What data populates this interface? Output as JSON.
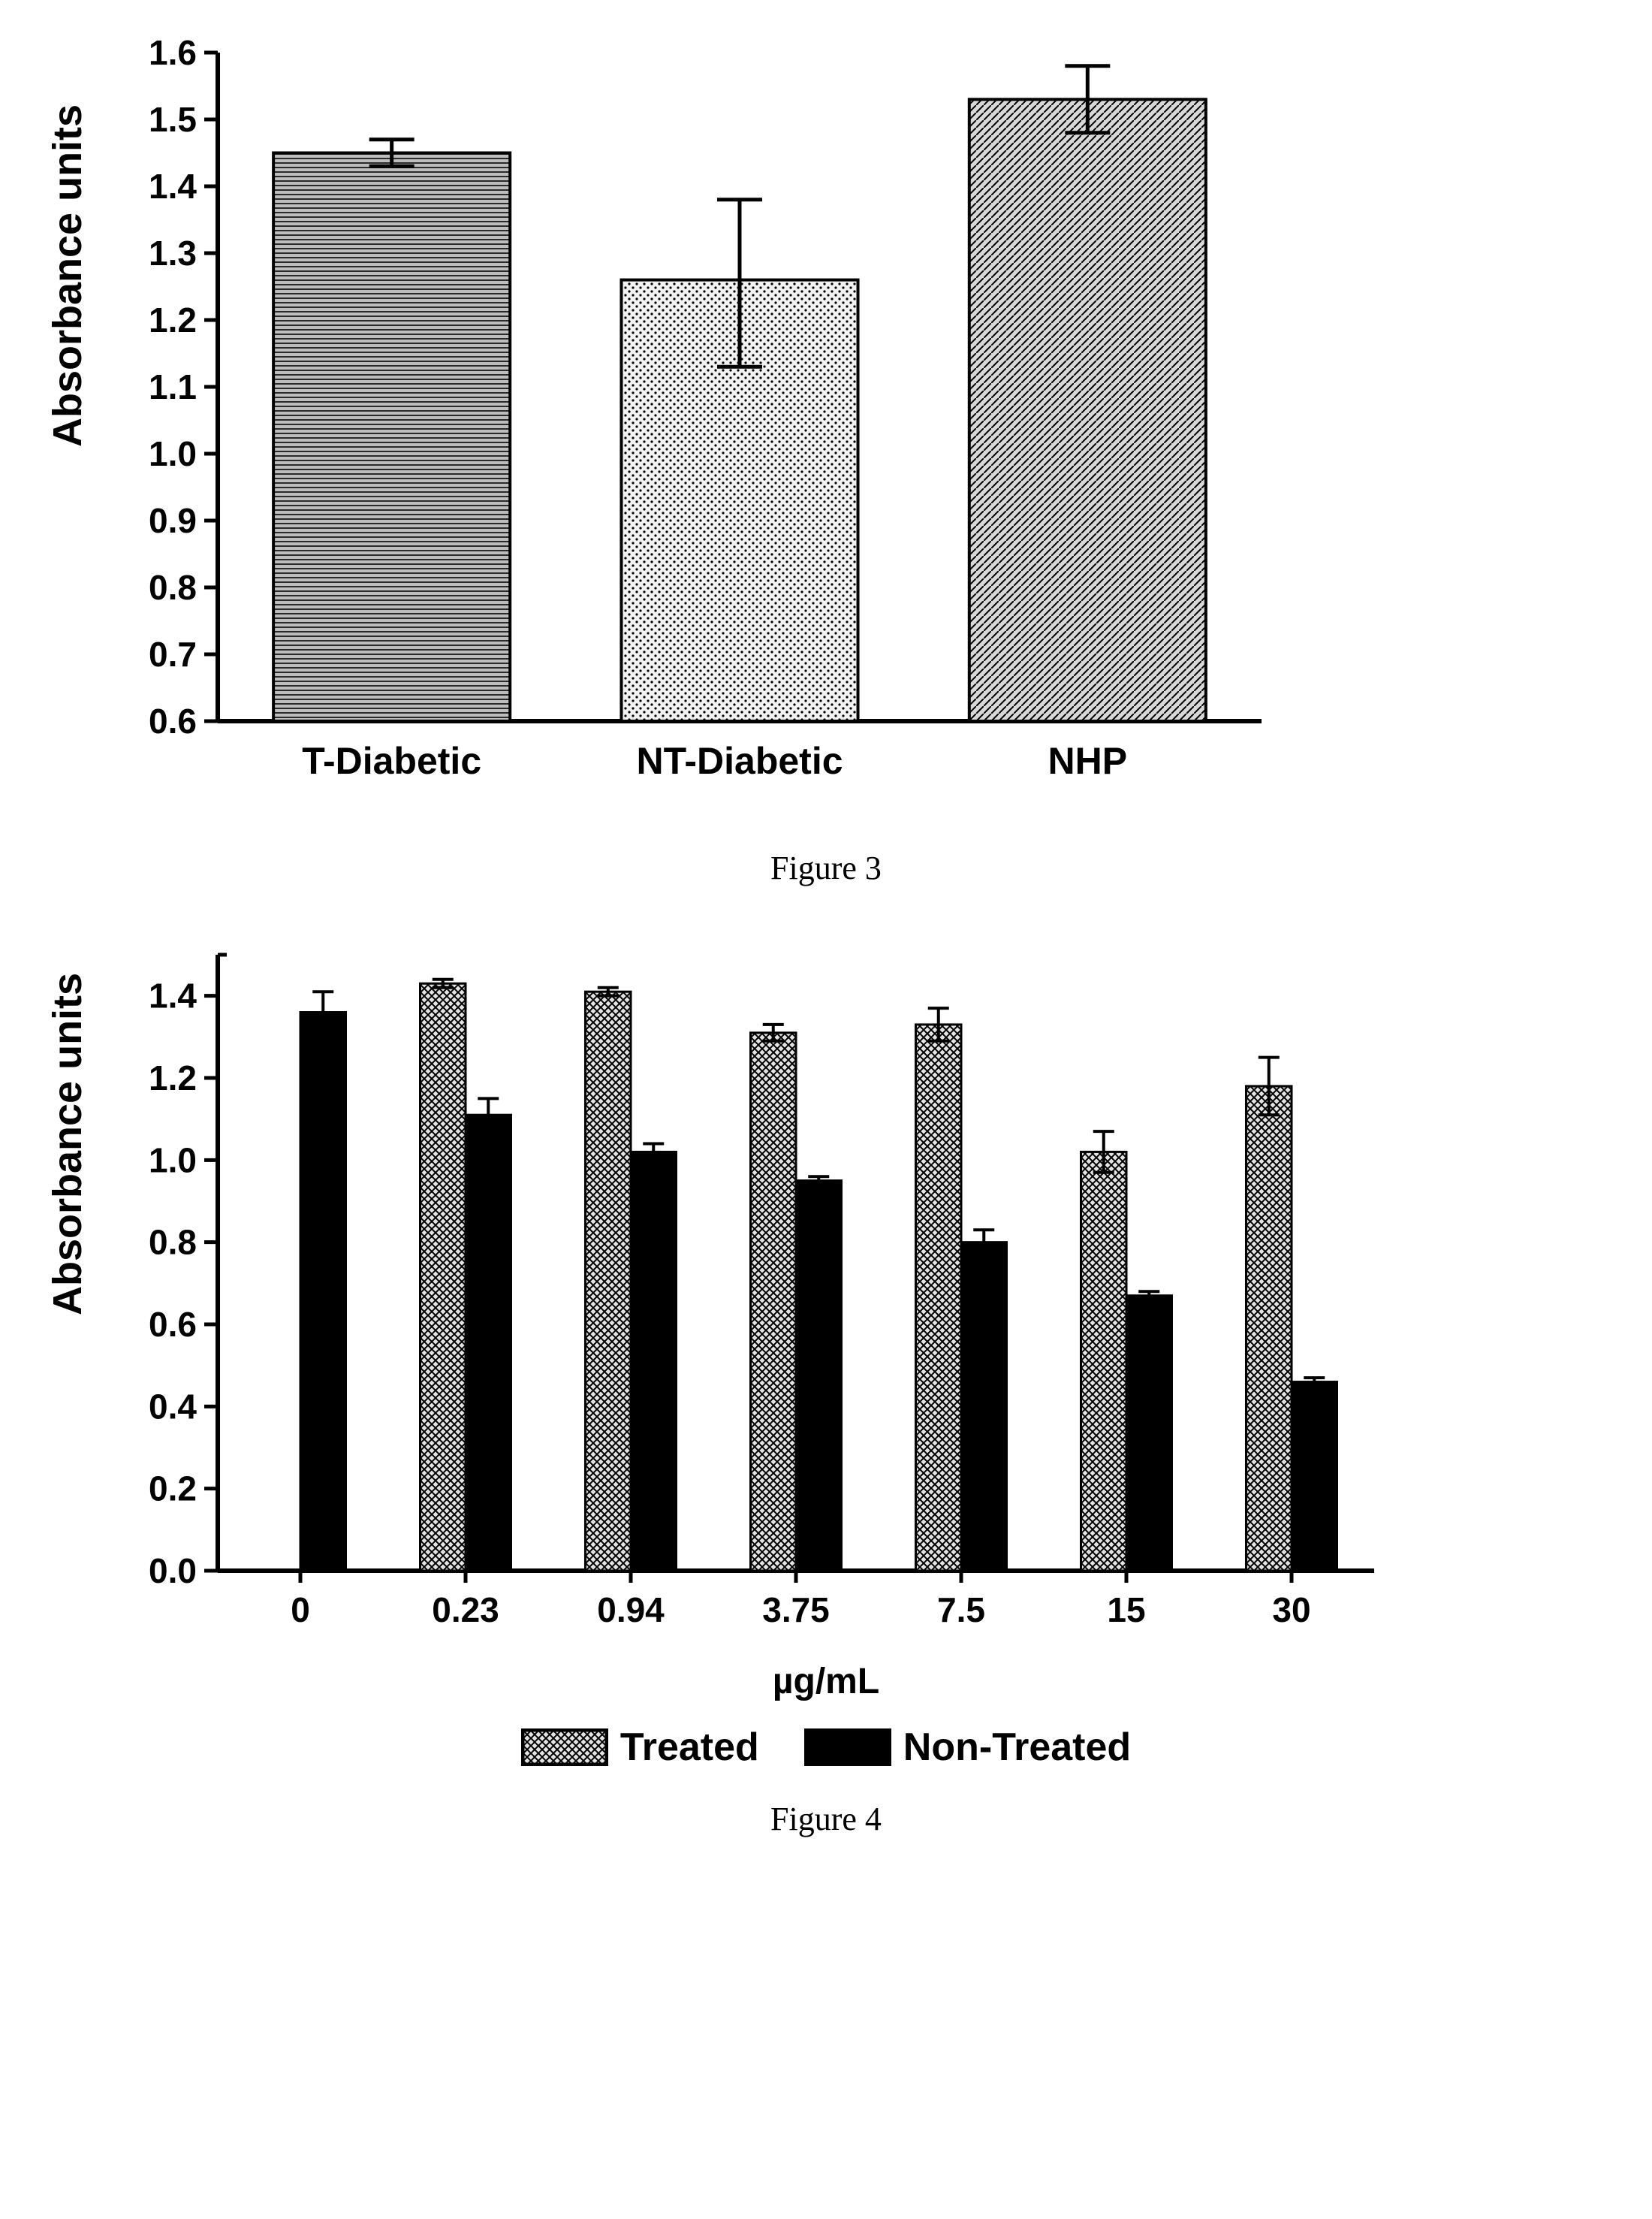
{
  "figure3": {
    "type": "bar",
    "ylabel": "Absorbance units",
    "ylim": [
      0.6,
      1.6
    ],
    "yticks": [
      0.6,
      0.7,
      0.8,
      0.9,
      1.0,
      1.1,
      1.2,
      1.3,
      1.4,
      1.5,
      1.6
    ],
    "categories": [
      "T-Diabetic",
      "NT-Diabetic",
      "NHP"
    ],
    "values": [
      1.45,
      1.26,
      1.53
    ],
    "err_low": [
      0.02,
      0.13,
      0.05
    ],
    "err_high": [
      0.02,
      0.12,
      0.05
    ],
    "patterns": [
      "horiz-noise",
      "dots",
      "diag"
    ],
    "axis_color": "#000000",
    "bar_stroke": "#000000",
    "bg": "#ffffff",
    "label_fontsize": 50,
    "tick_fontsize": 46,
    "caption": "Figure 3"
  },
  "figure4": {
    "type": "grouped-bar",
    "ylabel": "Absorbance units",
    "xlabel": "µg/mL",
    "ylim": [
      0.0,
      1.5
    ],
    "yticks": [
      0.0,
      0.2,
      0.4,
      0.6,
      0.8,
      1.0,
      1.2,
      1.4
    ],
    "categories": [
      "0",
      "0.23",
      "0.94",
      "3.75",
      "7.5",
      "15",
      "30"
    ],
    "series": [
      {
        "name": "Treated",
        "pattern": "crosshatch",
        "values": [
          null,
          1.43,
          1.41,
          1.31,
          1.33,
          1.02,
          1.18
        ],
        "err": [
          null,
          0.01,
          0.01,
          0.02,
          0.04,
          0.05,
          0.07
        ]
      },
      {
        "name": "Non-Treated",
        "pattern": "solid",
        "values": [
          1.36,
          1.11,
          1.02,
          0.95,
          0.8,
          0.67,
          0.46
        ],
        "err": [
          0.05,
          0.04,
          0.02,
          0.01,
          0.03,
          0.01,
          0.01
        ]
      }
    ],
    "legend": [
      "Treated",
      "Non-Treated"
    ],
    "axis_color": "#000000",
    "bar_stroke": "#000000",
    "bg": "#ffffff",
    "label_fontsize": 46,
    "tick_fontsize": 46,
    "caption": "Figure 4"
  }
}
